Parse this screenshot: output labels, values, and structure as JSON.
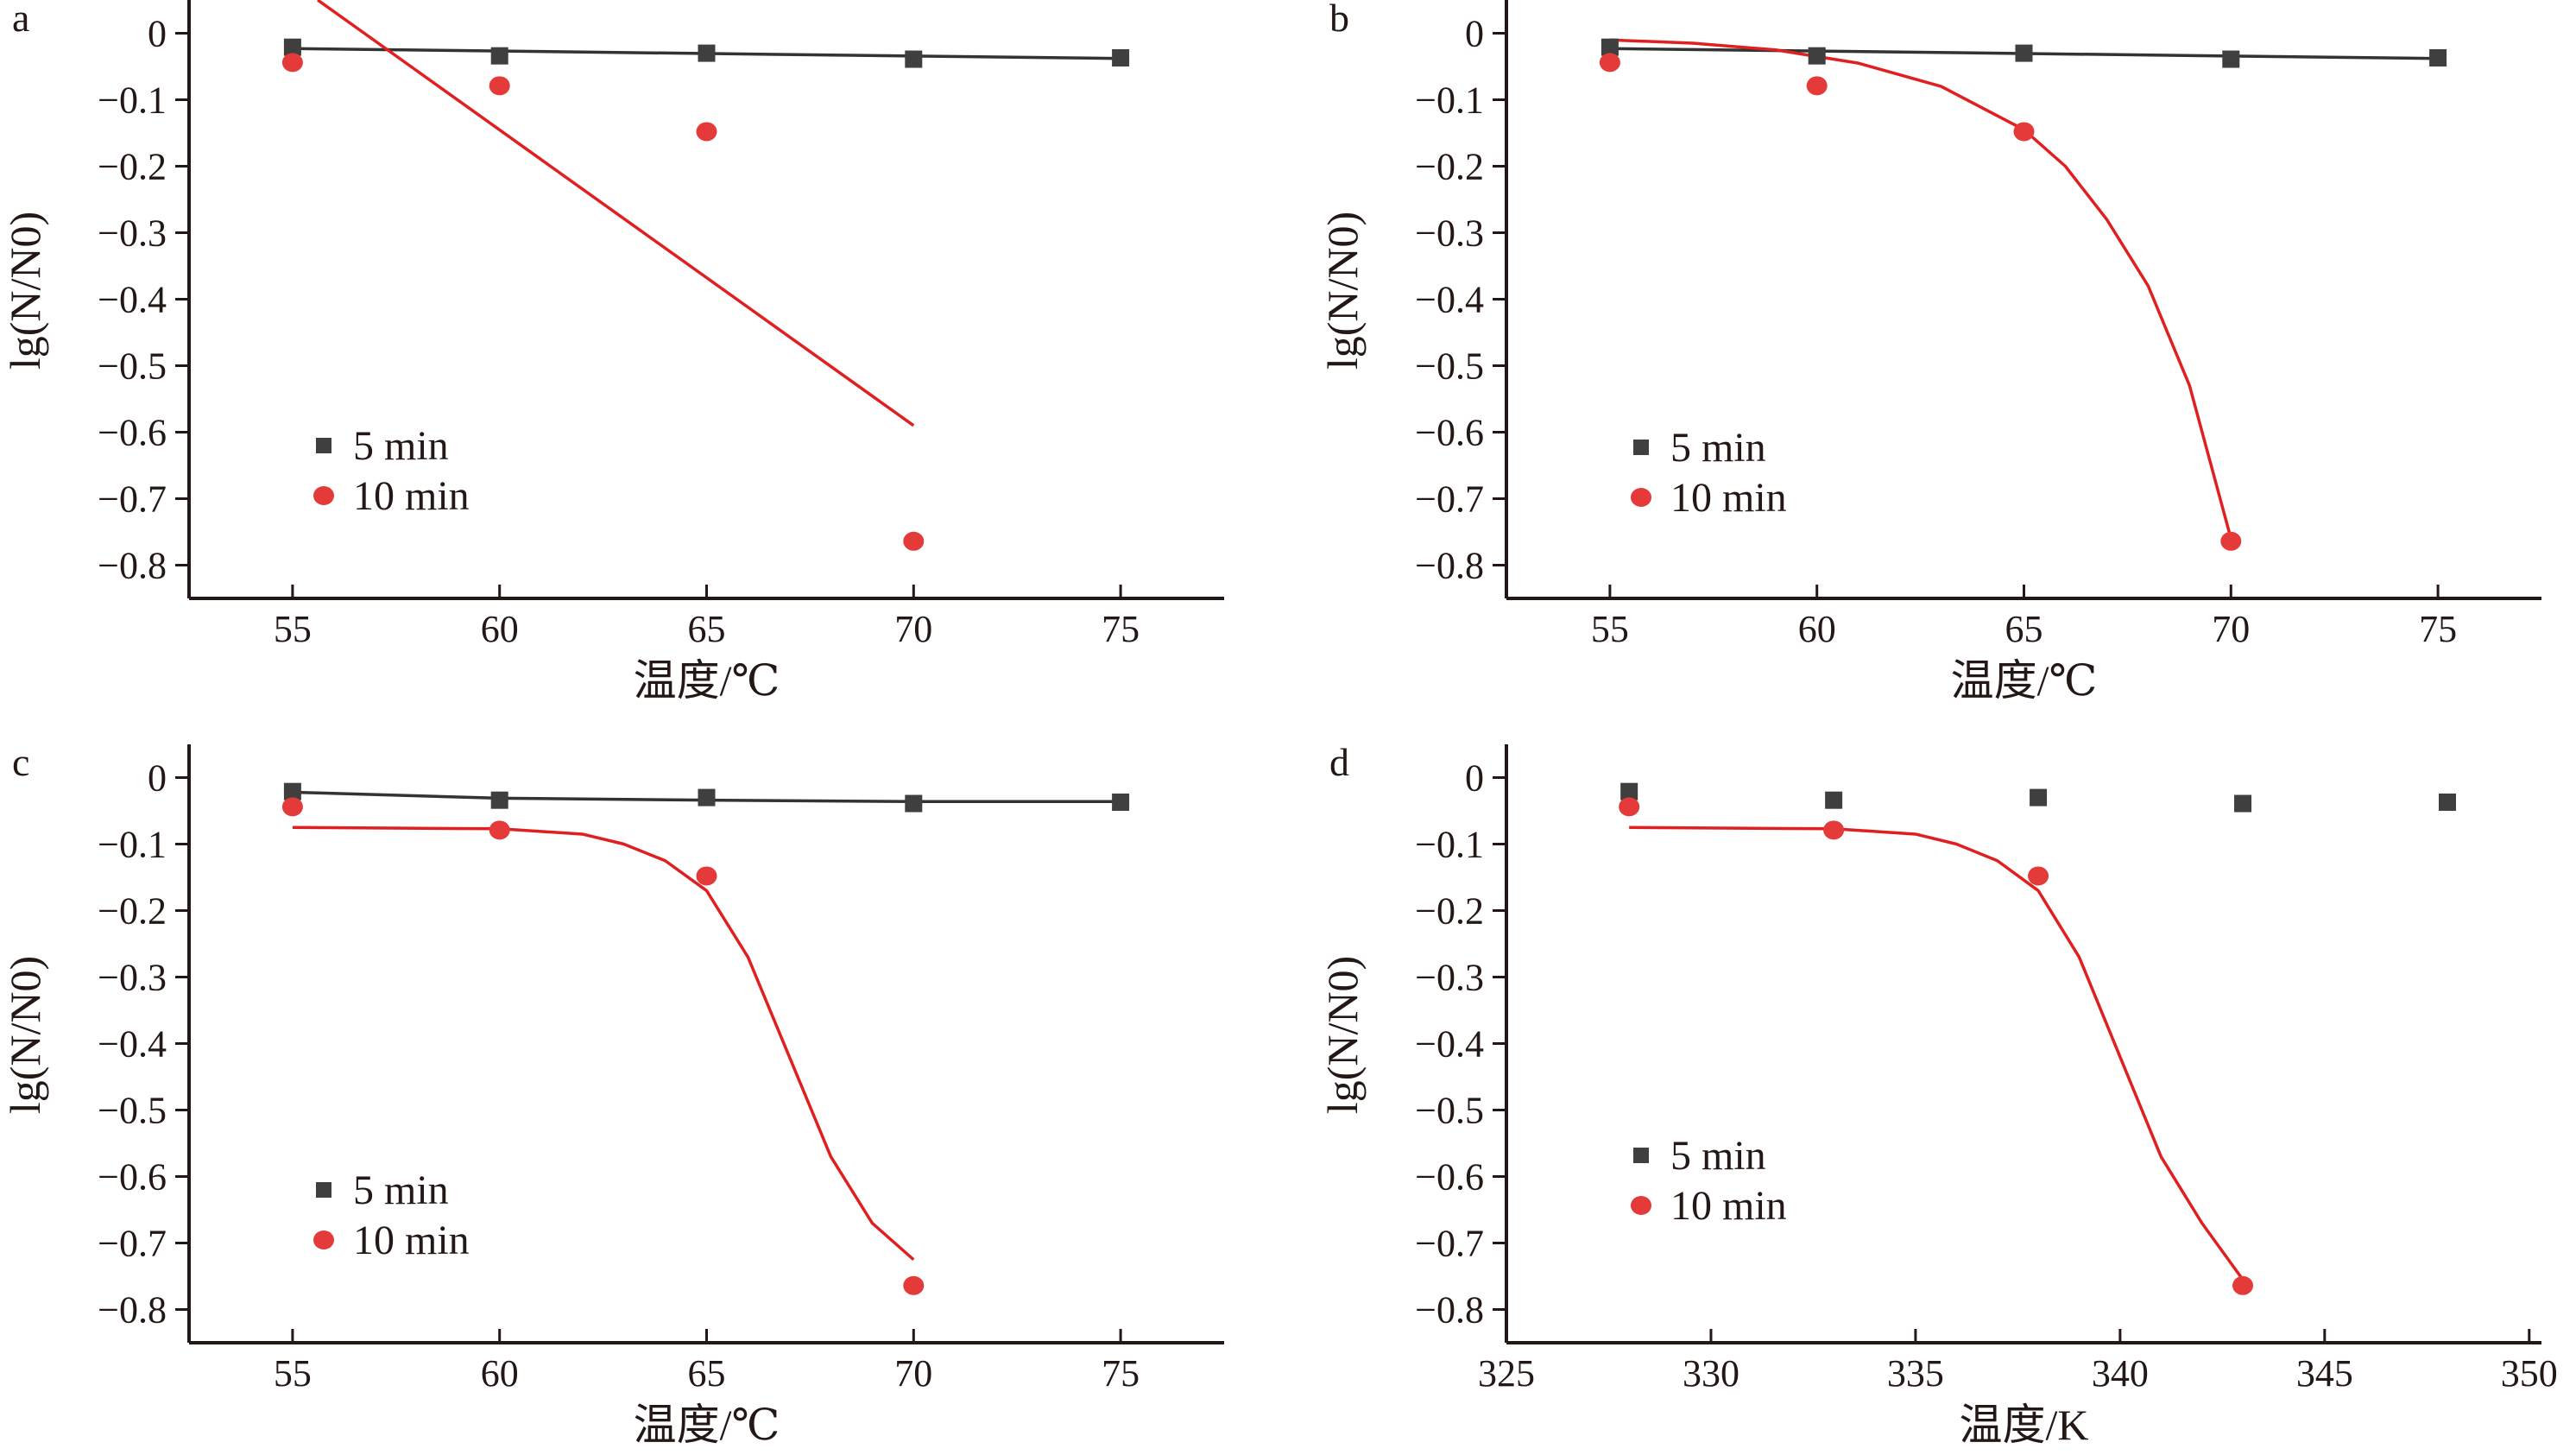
{
  "colors": {
    "s5": "#3f3f3f",
    "s10": "#e43a3a",
    "line5": "#333333",
    "line10": "#e02020",
    "axis": "#231815"
  },
  "chart_data": [
    {
      "panel": "a",
      "type": "scatter",
      "xlabel": "温度/℃",
      "ylabel": "lg(N/N0)",
      "xlim": [
        52.5,
        77.5
      ],
      "ylim": [
        -0.85,
        0.05
      ],
      "xticks": [
        55,
        60,
        65,
        70,
        75
      ],
      "xtick_labels": [
        "55",
        "60",
        "65",
        "70",
        "75"
      ],
      "yticks": [
        0,
        -0.1,
        -0.2,
        -0.3,
        -0.4,
        -0.5,
        -0.6,
        -0.7,
        -0.8
      ],
      "ytick_labels": [
        "0",
        "−0.1",
        "−0.2",
        "−0.3",
        "−0.4",
        "−0.5",
        "−0.6",
        "−0.7",
        "−0.8"
      ],
      "legend": [
        "5 min",
        "10 min"
      ],
      "legend_position": "lower-left",
      "series": [
        {
          "name": "5 min",
          "x": [
            55,
            60,
            65,
            70,
            75
          ],
          "y": [
            -0.021,
            -0.034,
            -0.03,
            -0.039,
            -0.037
          ]
        },
        {
          "name": "10 min",
          "x": [
            55,
            60,
            65,
            70
          ],
          "y": [
            -0.044,
            -0.079,
            -0.148,
            -0.764
          ]
        }
      ],
      "fits": [
        {
          "series": "5 min",
          "type": "linear",
          "x": [
            55,
            75
          ],
          "y": [
            -0.023,
            -0.038
          ]
        },
        {
          "series": "10 min",
          "type": "linear",
          "x": [
            55,
            70
          ],
          "y": [
            0.077,
            -0.59
          ]
        }
      ]
    },
    {
      "panel": "b",
      "type": "scatter",
      "xlabel": "温度/℃",
      "ylabel": "lg(N/N0)",
      "xlim": [
        52.5,
        77.5
      ],
      "ylim": [
        -0.85,
        0.05
      ],
      "xticks": [
        55,
        60,
        65,
        70,
        75
      ],
      "xtick_labels": [
        "55",
        "60",
        "65",
        "70",
        "75"
      ],
      "yticks": [
        0,
        -0.1,
        -0.2,
        -0.3,
        -0.4,
        -0.5,
        -0.6,
        -0.7,
        -0.8
      ],
      "ytick_labels": [
        "0",
        "−0.1",
        "−0.2",
        "−0.3",
        "−0.4",
        "−0.5",
        "−0.6",
        "−0.7",
        "−0.8"
      ],
      "legend": [
        "5 min",
        "10 min"
      ],
      "legend_position": "lower-left",
      "series": [
        {
          "name": "5 min",
          "x": [
            55,
            60,
            65,
            70,
            75
          ],
          "y": [
            -0.021,
            -0.034,
            -0.03,
            -0.039,
            -0.037
          ]
        },
        {
          "name": "10 min",
          "x": [
            55,
            60,
            65,
            70
          ],
          "y": [
            -0.044,
            -0.079,
            -0.148,
            -0.764
          ]
        }
      ],
      "fits": [
        {
          "series": "5 min",
          "type": "linear",
          "x": [
            55,
            75
          ],
          "y": [
            -0.023,
            -0.038
          ]
        },
        {
          "series": "10 min",
          "type": "exponential",
          "x": [
            55,
            57,
            59,
            61,
            63,
            65,
            66,
            67,
            68,
            69,
            70
          ],
          "y": [
            -0.01,
            -0.015,
            -0.025,
            -0.045,
            -0.08,
            -0.145,
            -0.2,
            -0.28,
            -0.38,
            -0.53,
            -0.76
          ]
        }
      ]
    },
    {
      "panel": "c",
      "type": "scatter",
      "xlabel": "温度/℃",
      "ylabel": "lg(N/N0)",
      "xlim": [
        52.5,
        77.5
      ],
      "ylim": [
        -0.85,
        0.05
      ],
      "xticks": [
        55,
        60,
        65,
        70,
        75
      ],
      "xtick_labels": [
        "55",
        "60",
        "65",
        "70",
        "75"
      ],
      "yticks": [
        0,
        -0.1,
        -0.2,
        -0.3,
        -0.4,
        -0.5,
        -0.6,
        -0.7,
        -0.8
      ],
      "ytick_labels": [
        "0",
        "−0.1",
        "−0.2",
        "−0.3",
        "−0.4",
        "−0.5",
        "−0.6",
        "−0.7",
        "−0.8"
      ],
      "legend": [
        "5 min",
        "10 min"
      ],
      "legend_position": "lower-left",
      "series": [
        {
          "name": "5 min",
          "x": [
            55,
            60,
            65,
            70,
            75
          ],
          "y": [
            -0.021,
            -0.034,
            -0.03,
            -0.039,
            -0.037
          ]
        },
        {
          "name": "10 min",
          "x": [
            55,
            60,
            65,
            70
          ],
          "y": [
            -0.044,
            -0.079,
            -0.148,
            -0.764
          ]
        }
      ],
      "fits": [
        {
          "series": "5 min",
          "type": "linear",
          "x": [
            55,
            60,
            65,
            70,
            75
          ],
          "y": [
            -0.022,
            -0.031,
            -0.034,
            -0.036,
            -0.036
          ]
        },
        {
          "series": "10 min",
          "type": "sigmoid",
          "x": [
            55,
            60,
            62,
            63,
            64,
            65,
            66,
            67,
            68,
            69,
            70
          ],
          "y": [
            -0.075,
            -0.077,
            -0.085,
            -0.1,
            -0.125,
            -0.17,
            -0.27,
            -0.42,
            -0.57,
            -0.67,
            -0.725
          ]
        }
      ]
    },
    {
      "panel": "d",
      "type": "scatter",
      "xlabel": "温度/K",
      "ylabel": "lg(N/N0)",
      "xlim": [
        325,
        350.3
      ],
      "ylim": [
        -0.85,
        0.05
      ],
      "xticks": [
        325,
        330,
        335,
        340,
        345,
        350
      ],
      "xtick_labels": [
        "325",
        "330",
        "335",
        "340",
        "345",
        "350"
      ],
      "yticks": [
        0,
        -0.1,
        -0.2,
        -0.3,
        -0.4,
        -0.5,
        -0.6,
        -0.7,
        -0.8
      ],
      "ytick_labels": [
        "0",
        "−0.1",
        "−0.2",
        "−0.3",
        "−0.4",
        "−0.5",
        "−0.6",
        "−0.7",
        "−0.8"
      ],
      "legend": [
        "5 min",
        "10 min"
      ],
      "legend_position": "bottom-left",
      "series": [
        {
          "name": "5 min",
          "x": [
            328,
            333,
            338,
            343,
            348
          ],
          "y": [
            -0.021,
            -0.034,
            -0.03,
            -0.039,
            -0.037
          ]
        },
        {
          "name": "10 min",
          "x": [
            328,
            333,
            338,
            343
          ],
          "y": [
            -0.044,
            -0.079,
            -0.148,
            -0.764
          ]
        }
      ],
      "fits": [
        {
          "series": "10 min",
          "type": "sigmoid",
          "x": [
            328,
            333,
            335,
            336,
            337,
            338,
            339,
            340,
            341,
            342,
            343
          ],
          "y": [
            -0.075,
            -0.077,
            -0.085,
            -0.1,
            -0.125,
            -0.17,
            -0.27,
            -0.42,
            -0.57,
            -0.67,
            -0.755
          ]
        }
      ]
    }
  ]
}
